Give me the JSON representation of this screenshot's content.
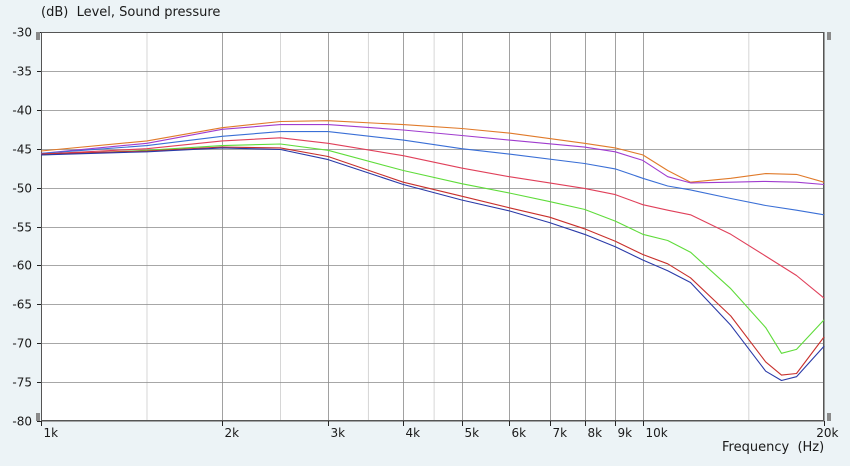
{
  "chart_data": {
    "type": "line",
    "title_unit": "(dB)",
    "title": "Level, Sound pressure",
    "xlabel_name": "Frequency",
    "xlabel_unit": "(Hz)",
    "xscale": "log",
    "xlim": [
      1000,
      20000
    ],
    "ylim": [
      -80,
      -30
    ],
    "grid": true,
    "colors": {
      "background": "#ecf3f6",
      "plot_area": "#ffffff",
      "grid": "#8a8a8a",
      "axis": "#222222"
    },
    "x_ticks": [
      {
        "value": 1000,
        "label": "1k"
      },
      {
        "value": 2000,
        "label": "2k"
      },
      {
        "value": 3000,
        "label": "3k"
      },
      {
        "value": 4000,
        "label": "4k"
      },
      {
        "value": 5000,
        "label": "5k"
      },
      {
        "value": 6000,
        "label": "6k"
      },
      {
        "value": 7000,
        "label": "7k"
      },
      {
        "value": 8000,
        "label": "8k"
      },
      {
        "value": 9000,
        "label": "9k"
      },
      {
        "value": 10000,
        "label": "10k"
      },
      {
        "value": 20000,
        "label": "20k"
      }
    ],
    "y_ticks": [
      {
        "value": -30,
        "label": "-30"
      },
      {
        "value": -35,
        "label": "-35"
      },
      {
        "value": -40,
        "label": "-40"
      },
      {
        "value": -45,
        "label": "-45"
      },
      {
        "value": -50,
        "label": "-50"
      },
      {
        "value": -55,
        "label": "-55"
      },
      {
        "value": -60,
        "label": "-60"
      },
      {
        "value": -65,
        "label": "-65"
      },
      {
        "value": -70,
        "label": "-70"
      },
      {
        "value": -75,
        "label": "-75"
      },
      {
        "value": -80,
        "label": "-80"
      }
    ],
    "series": [
      {
        "color": "#e07a2a",
        "x": [
          1000,
          1500,
          2000,
          2500,
          3000,
          4000,
          5000,
          6000,
          8000,
          9000,
          10000,
          11000,
          12000,
          14000,
          16000,
          18000,
          20000
        ],
        "y": [
          -45.3,
          -44.0,
          -42.3,
          -41.5,
          -41.4,
          -41.9,
          -42.4,
          -43.0,
          -44.3,
          -44.9,
          -45.8,
          -47.8,
          -49.3,
          -48.8,
          -48.2,
          -48.3,
          -49.3
        ]
      },
      {
        "color": "#a03ccf",
        "x": [
          1000,
          1500,
          2000,
          2500,
          3000,
          4000,
          5000,
          6000,
          8000,
          9000,
          10000,
          11000,
          12000,
          14000,
          16000,
          18000,
          20000
        ],
        "y": [
          -45.6,
          -44.3,
          -42.5,
          -41.9,
          -41.9,
          -42.6,
          -43.3,
          -43.9,
          -44.8,
          -45.4,
          -46.5,
          -48.6,
          -49.4,
          -49.3,
          -49.2,
          -49.3,
          -49.6
        ]
      },
      {
        "color": "#3a6fd6",
        "x": [
          1000,
          1500,
          2000,
          2500,
          3000,
          4000,
          5000,
          6000,
          8000,
          9000,
          10000,
          11000,
          12000,
          14000,
          16000,
          18000,
          20000
        ],
        "y": [
          -45.6,
          -44.6,
          -43.4,
          -42.8,
          -42.8,
          -43.9,
          -45.0,
          -45.7,
          -46.9,
          -47.6,
          -48.8,
          -49.8,
          -50.3,
          -51.4,
          -52.3,
          -52.9,
          -53.5
        ]
      },
      {
        "color": "#e0405a",
        "x": [
          1000,
          1500,
          2000,
          2500,
          3000,
          4000,
          5000,
          6000,
          7000,
          8000,
          9000,
          10000,
          11000,
          12000,
          14000,
          16000,
          18000,
          20000
        ],
        "y": [
          -45.7,
          -45.0,
          -44.0,
          -43.6,
          -44.3,
          -45.9,
          -47.5,
          -48.6,
          -49.4,
          -50.1,
          -50.9,
          -52.2,
          -52.9,
          -53.5,
          -56.0,
          -58.8,
          -61.3,
          -64.2
        ]
      },
      {
        "color": "#5fdc3a",
        "x": [
          1000,
          1500,
          2000,
          2500,
          3000,
          4000,
          5000,
          6000,
          7000,
          8000,
          9000,
          10000,
          11000,
          12000,
          14000,
          16000,
          17000,
          18000,
          20000
        ],
        "y": [
          -45.8,
          -45.2,
          -44.6,
          -44.4,
          -45.2,
          -47.8,
          -49.5,
          -50.7,
          -51.8,
          -52.8,
          -54.3,
          -56.0,
          -56.8,
          -58.3,
          -63.0,
          -68.0,
          -71.3,
          -70.8,
          -67.0
        ]
      },
      {
        "color": "#c8302c",
        "x": [
          1000,
          1500,
          2000,
          2500,
          3000,
          4000,
          5000,
          6000,
          7000,
          8000,
          9000,
          10000,
          11000,
          12000,
          14000,
          16000,
          17000,
          18000,
          20000
        ],
        "y": [
          -45.7,
          -45.3,
          -44.8,
          -44.9,
          -46.0,
          -49.3,
          -51.1,
          -52.6,
          -53.8,
          -55.3,
          -56.9,
          -58.6,
          -59.8,
          -61.6,
          -66.5,
          -72.4,
          -74.1,
          -73.9,
          -69.2
        ]
      },
      {
        "color": "#2a3aa8",
        "x": [
          1000,
          1500,
          2000,
          2500,
          3000,
          4000,
          5000,
          6000,
          7000,
          8000,
          9000,
          10000,
          11000,
          12000,
          14000,
          16000,
          17000,
          18000,
          20000
        ],
        "y": [
          -45.8,
          -45.4,
          -44.9,
          -45.1,
          -46.4,
          -49.6,
          -51.6,
          -53.0,
          -54.5,
          -56.0,
          -57.6,
          -59.3,
          -60.7,
          -62.2,
          -67.7,
          -73.6,
          -74.8,
          -74.3,
          -70.4
        ]
      }
    ]
  }
}
